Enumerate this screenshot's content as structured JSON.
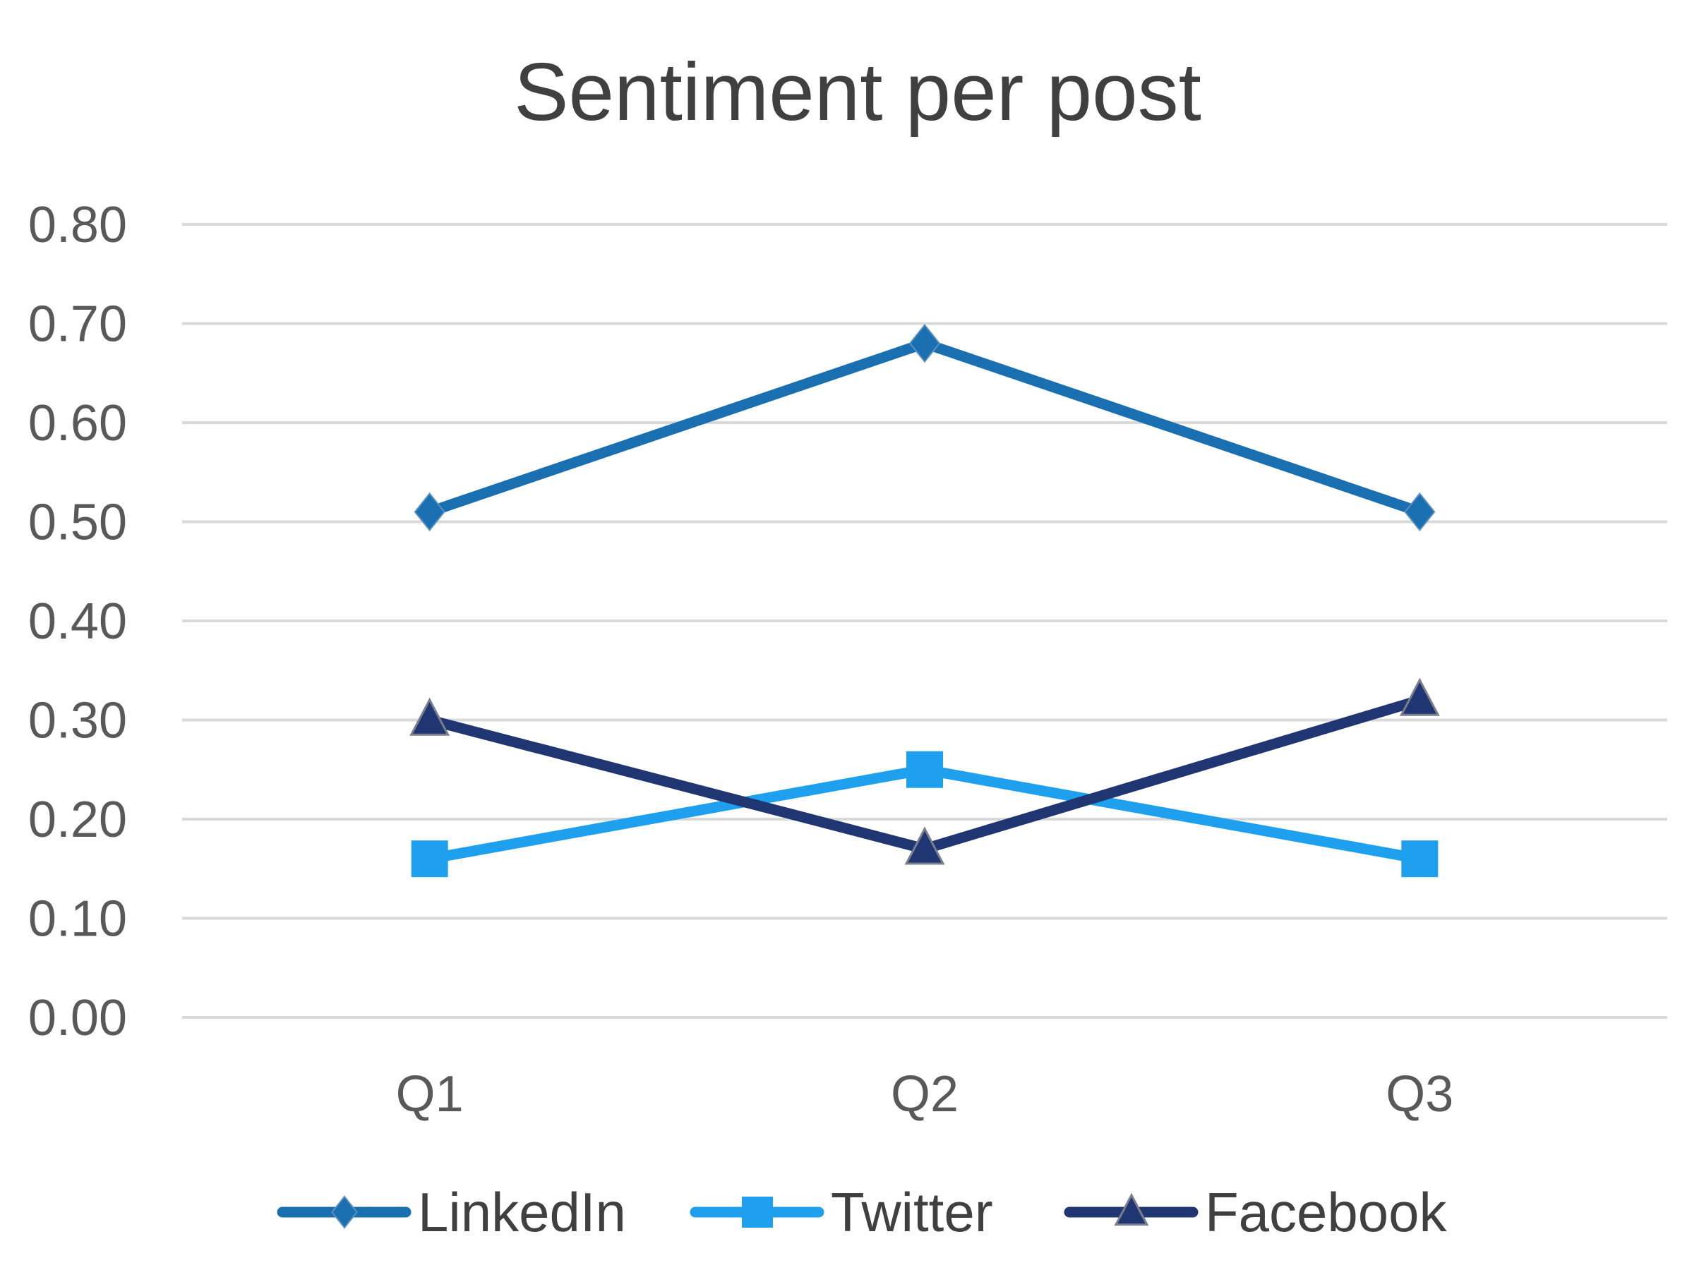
{
  "chart_data": {
    "type": "line",
    "title": "Sentiment per post",
    "xlabel": "",
    "ylabel": "",
    "categories": [
      "Q1",
      "Q2",
      "Q3"
    ],
    "ylim": [
      0,
      0.8
    ],
    "y_ticks": [
      "0.80",
      "0.70",
      "0.60",
      "0.50",
      "0.40",
      "0.30",
      "0.20",
      "0.10",
      "0.00"
    ],
    "grid": true,
    "legend_position": "bottom",
    "series": [
      {
        "name": "LinkedIn",
        "values": [
          0.51,
          0.68,
          0.51
        ],
        "color": "#1a6fb0",
        "marker": "diamond"
      },
      {
        "name": "Twitter",
        "values": [
          0.16,
          0.25,
          0.16
        ],
        "color": "#1ea0ee",
        "marker": "square"
      },
      {
        "name": "Facebook",
        "values": [
          0.3,
          0.17,
          0.32
        ],
        "color": "#1f3672",
        "marker": "triangle"
      }
    ]
  }
}
